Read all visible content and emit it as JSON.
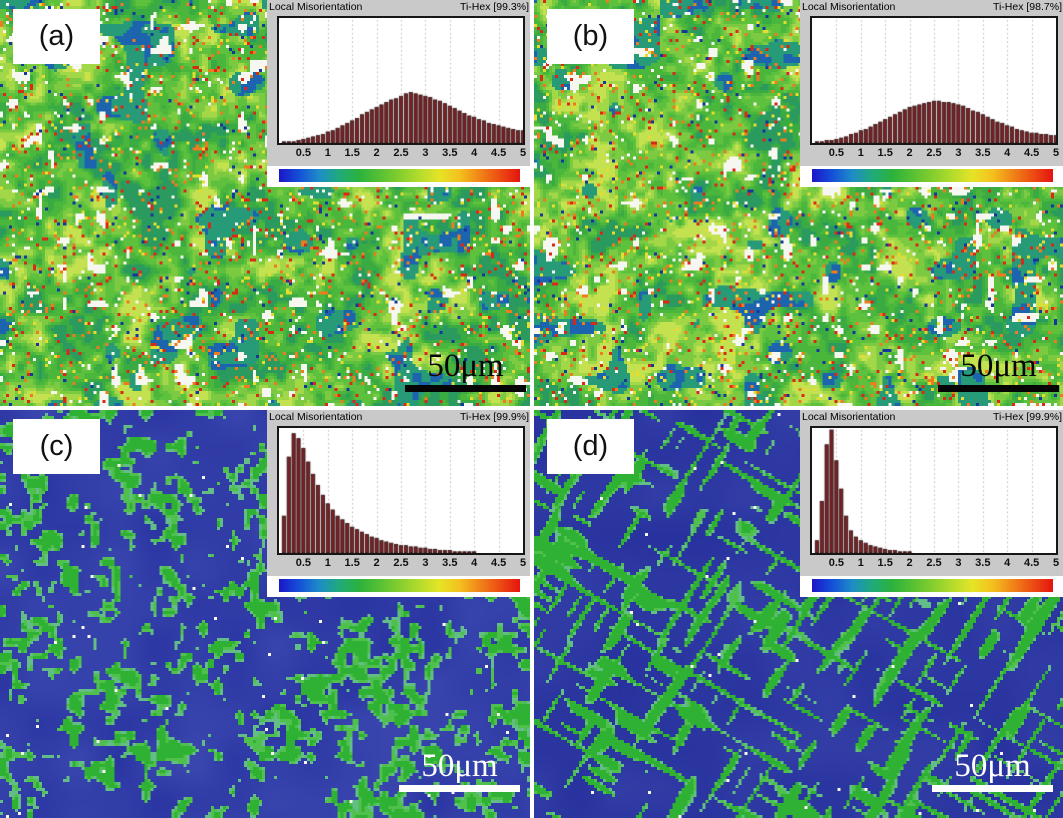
{
  "figure": {
    "panels": [
      {
        "label": "(a)",
        "scale_label": "50μm",
        "scale_style": "dark",
        "map": {
          "type": "speckle",
          "seed": 3
        }
      },
      {
        "label": "(b)",
        "scale_label": "50μm",
        "scale_style": "dark",
        "map": {
          "type": "speckle",
          "seed": 77
        }
      },
      {
        "label": "(c)",
        "scale_label": "50μm",
        "scale_style": "light",
        "map": {
          "type": "blobs",
          "seed": 21
        }
      },
      {
        "label": "(d)",
        "scale_label": "50μm",
        "scale_style": "light",
        "map": {
          "type": "streaks",
          "seed": 55
        }
      }
    ]
  },
  "chart_data": [
    {
      "type": "bar",
      "panel": "a",
      "title": "Local Misorientation",
      "phase_label": "Ti-Hex [99.3%]",
      "x_ticks": [
        "0.5",
        "1",
        "1.5",
        "2",
        "2.5",
        "3",
        "3.5",
        "4",
        "4.5",
        "5"
      ],
      "xlim": [
        0,
        5
      ],
      "ylim": [
        0,
        1
      ],
      "bin_start": 0.1,
      "bin_step": 0.1,
      "legend": "none",
      "grid": "vertical-dotted",
      "values": [
        0.01,
        0.01,
        0.01,
        0.02,
        0.03,
        0.04,
        0.05,
        0.06,
        0.07,
        0.09,
        0.1,
        0.12,
        0.14,
        0.16,
        0.18,
        0.2,
        0.23,
        0.25,
        0.27,
        0.29,
        0.31,
        0.33,
        0.35,
        0.36,
        0.38,
        0.4,
        0.41,
        0.4,
        0.39,
        0.38,
        0.37,
        0.35,
        0.34,
        0.32,
        0.3,
        0.28,
        0.26,
        0.24,
        0.22,
        0.21,
        0.19,
        0.18,
        0.16,
        0.15,
        0.14,
        0.13,
        0.12,
        0.11,
        0.1,
        0.1
      ]
    },
    {
      "type": "bar",
      "panel": "b",
      "title": "Local Misorientation",
      "phase_label": "Ti-Hex [98.7%]",
      "x_ticks": [
        "0.5",
        "1",
        "1.5",
        "2",
        "2.5",
        "3",
        "3.5",
        "4",
        "4.5",
        "5"
      ],
      "xlim": [
        0,
        5
      ],
      "ylim": [
        0,
        1
      ],
      "bin_start": 0.1,
      "bin_step": 0.1,
      "legend": "none",
      "grid": "vertical-dotted",
      "values": [
        0.01,
        0.01,
        0.02,
        0.02,
        0.03,
        0.04,
        0.05,
        0.07,
        0.08,
        0.1,
        0.11,
        0.13,
        0.15,
        0.17,
        0.19,
        0.21,
        0.23,
        0.25,
        0.27,
        0.29,
        0.3,
        0.31,
        0.32,
        0.33,
        0.34,
        0.34,
        0.33,
        0.33,
        0.32,
        0.31,
        0.3,
        0.28,
        0.26,
        0.25,
        0.23,
        0.21,
        0.19,
        0.17,
        0.16,
        0.14,
        0.13,
        0.11,
        0.1,
        0.09,
        0.08,
        0.08,
        0.07,
        0.07,
        0.06,
        0.06
      ]
    },
    {
      "type": "bar",
      "panel": "c",
      "title": "Local Misorientation",
      "phase_label": "Ti-Hex [99.9%]",
      "x_ticks": [
        "0.5",
        "1",
        "1.5",
        "2",
        "2.5",
        "3",
        "3.5",
        "4",
        "4.5",
        "5"
      ],
      "xlim": [
        0,
        5
      ],
      "ylim": [
        0,
        1
      ],
      "bin_start": 0.1,
      "bin_step": 0.1,
      "legend": "none",
      "grid": "vertical-dotted",
      "values": [
        0.3,
        0.78,
        0.97,
        0.93,
        0.85,
        0.74,
        0.64,
        0.55,
        0.47,
        0.4,
        0.35,
        0.3,
        0.27,
        0.24,
        0.21,
        0.19,
        0.17,
        0.15,
        0.13,
        0.12,
        0.1,
        0.09,
        0.08,
        0.07,
        0.06,
        0.06,
        0.05,
        0.05,
        0.04,
        0.04,
        0.03,
        0.03,
        0.02,
        0.02,
        0.02,
        0.01,
        0.01,
        0.01,
        0.01,
        0.01,
        0,
        0,
        0,
        0,
        0,
        0,
        0,
        0,
        0,
        0
      ]
    },
    {
      "type": "bar",
      "panel": "d",
      "title": "Local Misorientation",
      "phase_label": "Ti-Hex [99.9%]",
      "x_ticks": [
        "0.5",
        "1",
        "1.5",
        "2",
        "2.5",
        "3",
        "3.5",
        "4",
        "4.5",
        "5"
      ],
      "xlim": [
        0,
        5
      ],
      "ylim": [
        0,
        1
      ],
      "bin_start": 0.1,
      "bin_step": 0.1,
      "legend": "none",
      "grid": "vertical-dotted",
      "values": [
        0.1,
        0.42,
        0.88,
        1.0,
        0.75,
        0.52,
        0.3,
        0.18,
        0.13,
        0.1,
        0.08,
        0.06,
        0.05,
        0.04,
        0.03,
        0.02,
        0.02,
        0.01,
        0.01,
        0.01,
        0,
        0,
        0,
        0,
        0,
        0,
        0,
        0,
        0,
        0,
        0,
        0,
        0,
        0,
        0,
        0,
        0,
        0,
        0,
        0,
        0,
        0,
        0,
        0,
        0,
        0,
        0,
        0,
        0,
        0
      ]
    }
  ],
  "colors": {
    "inset_bg": "#c9c9c9",
    "plot_border": "#161616",
    "gridline": "#b5b5b5",
    "bar_fill": "#7b2226",
    "bar_edge": "#230808",
    "colorbar": [
      "#1c16c8",
      "#1450d8",
      "#1e8cc8",
      "#20aa7a",
      "#2cb23c",
      "#56c034",
      "#84ce2e",
      "#b4dc2c",
      "#e6e426",
      "#f4c01e",
      "#f08418",
      "#ec4c12",
      "#e41410"
    ],
    "map": {
      "green_ramp": [
        "#2b9a5e",
        "#3aab42",
        "#4bb63c",
        "#5dc13e",
        "#7cca42",
        "#a2d848",
        "#c4e250"
      ],
      "blue_patch": "#1d64ae",
      "teal_patch": "#279a78",
      "red": "#d82a16",
      "orange": "#ee7c1e",
      "yellow": "#e4dc2e",
      "white": "#f7f7f1",
      "navy": "#15389a",
      "lath_base1": "#2a35a2",
      "lath_base2": "#3a46ae",
      "lath_base_d1": "#27329e",
      "lath_base_d2": "#323da6",
      "lath_core": "#2fb134",
      "lath_mid": "#4fc04c",
      "lath_rim": "#62bd86"
    }
  }
}
